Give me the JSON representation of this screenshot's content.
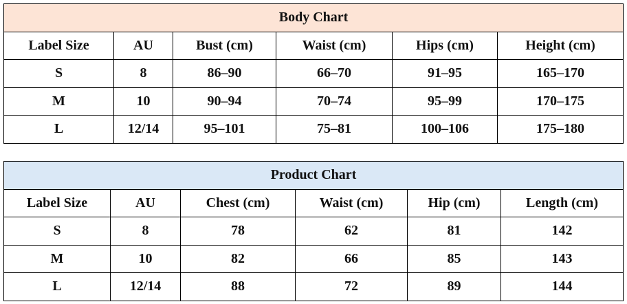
{
  "tables": [
    {
      "title": "Body Chart",
      "headers": [
        "Label Size",
        "AU",
        "Bust (cm)",
        "Waist (cm)",
        "Hips (cm)",
        "Height (cm)"
      ],
      "rows": [
        [
          "S",
          "8",
          "86–90",
          "66–70",
          "91–95",
          "165–170"
        ],
        [
          "M",
          "10",
          "90–94",
          "70–74",
          "95–99",
          "170–175"
        ],
        [
          "L",
          "12/14",
          "95–101",
          "75–81",
          "100–106",
          "175–180"
        ]
      ]
    },
    {
      "title": "Product Chart",
      "headers": [
        "Label Size",
        "AU",
        "Chest (cm)",
        "Waist (cm)",
        "Hip (cm)",
        "Length (cm)"
      ],
      "rows": [
        [
          "S",
          "8",
          "78",
          "62",
          "81",
          "142"
        ],
        [
          "M",
          "10",
          "82",
          "66",
          "85",
          "143"
        ],
        [
          "L",
          "12/14",
          "88",
          "72",
          "89",
          "144"
        ]
      ]
    }
  ]
}
